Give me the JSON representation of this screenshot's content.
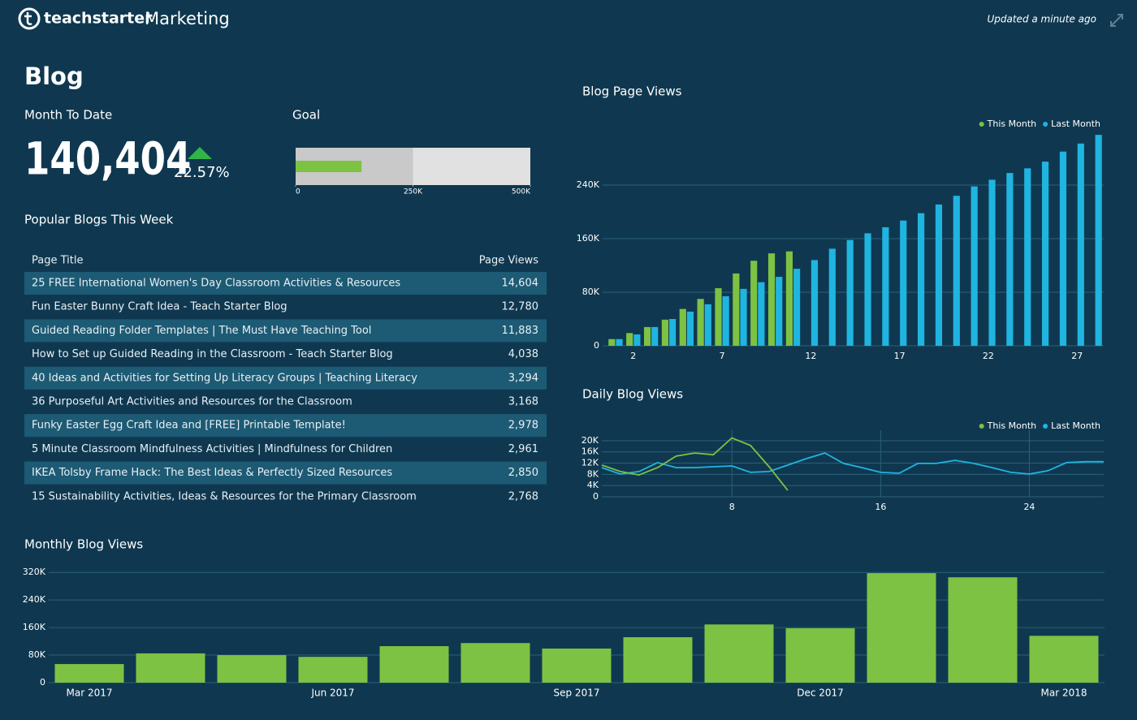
{
  "header": {
    "brand": "teachstarter",
    "section": "Marketing",
    "updated": "Updated a minute ago"
  },
  "blog": {
    "title": "Blog",
    "month_to_date": {
      "label": "Month To Date",
      "value": "140,404",
      "change": "22.57%"
    }
  },
  "popular_blogs": {
    "title": "Popular Blogs This Week",
    "columns": [
      "Page Title",
      "Page Views"
    ],
    "rows": [
      [
        "25 FREE International Women's Day Classroom Activities & Resources",
        "14,604"
      ],
      [
        "Fun Easter Bunny Craft Idea - Teach Starter Blog",
        "12,780"
      ],
      [
        "Guided Reading Folder Templates | The Must Have Teaching Tool",
        "11,883"
      ],
      [
        "How to Set up Guided Reading in the Classroom - Teach Starter Blog",
        "4,038"
      ],
      [
        "40 Ideas and Activities for Setting Up Literacy Groups | Teaching Literacy",
        "3,294"
      ],
      [
        "36 Purposeful Art Activities and Resources for the Classroom",
        "3,168"
      ],
      [
        "Funky Easter Egg Craft Idea and [FREE] Printable Template!",
        "2,978"
      ],
      [
        "5 Minute Classroom Mindfulness Activities | Mindfulness for Children",
        "2,961"
      ],
      [
        "IKEA Tolsby Frame Hack: The Best Ideas & Perfectly Sized Resources",
        "2,850"
      ],
      [
        "15 Sustainability Activities, Ideas & Resources for the Primary Classroom",
        "2,768"
      ]
    ]
  },
  "chart_data": [
    {
      "type": "bullet",
      "title": "Goal",
      "values": [
        140404
      ],
      "color": "#7dc242",
      "ranges": [
        250000,
        500000
      ],
      "range_colors": [
        "#c9c9c9",
        "#e1e1e1"
      ],
      "xlim": [
        0,
        500000
      ],
      "xticks": [
        0,
        {
          "value": 250000,
          "label": "250K"
        },
        {
          "value": 500000,
          "label": "500K"
        }
      ]
    },
    {
      "type": "bar",
      "title": "Blog Page Views",
      "legend": "upper right",
      "grid": true,
      "x": [
        1,
        2,
        3,
        4,
        5,
        6,
        7,
        8,
        9,
        10,
        11,
        12,
        13,
        14,
        15,
        16,
        17,
        18,
        19,
        20,
        21,
        22,
        23,
        24,
        25,
        26,
        27,
        28
      ],
      "xlim": [
        0.5,
        28.5
      ],
      "xticks": [
        2,
        7,
        12,
        17,
        22,
        27
      ],
      "ylim": [
        0,
        320000
      ],
      "yticks": [
        0,
        {
          "value": 80000,
          "label": "80K"
        },
        {
          "value": 160000,
          "label": "160K"
        },
        {
          "value": 240000,
          "label": "240K"
        }
      ],
      "series": [
        {
          "name": "This Month",
          "color": "#7dc242",
          "values": [
            10000,
            19000,
            28000,
            39000,
            55000,
            70000,
            86000,
            108000,
            127000,
            138000,
            141000,
            null,
            null,
            null,
            null,
            null,
            null,
            null,
            null,
            null,
            null,
            null,
            null,
            null,
            null,
            null,
            null,
            null
          ]
        },
        {
          "name": "Last Month",
          "color": "#1fb5e0",
          "values": [
            10000,
            17000,
            28000,
            40000,
            51000,
            62000,
            74000,
            85000,
            95000,
            103000,
            115000,
            128000,
            145000,
            158000,
            168000,
            177000,
            187000,
            198000,
            211000,
            224000,
            238000,
            248000,
            258000,
            265000,
            275000,
            290000,
            302000,
            315000
          ]
        }
      ]
    },
    {
      "type": "line",
      "title": "Daily Blog Views",
      "legend": "upper right",
      "grid": true,
      "xgrid": true,
      "x": [
        1,
        2,
        3,
        4,
        5,
        6,
        7,
        8,
        9,
        10,
        11,
        12,
        13,
        14,
        15,
        16,
        17,
        18,
        19,
        20,
        21,
        22,
        23,
        24,
        25,
        26,
        27,
        28
      ],
      "xlim": [
        1,
        28
      ],
      "xticks": [
        8,
        16,
        24
      ],
      "ylim": [
        0,
        22000
      ],
      "yticks": [
        0,
        {
          "value": 4000,
          "label": "4K"
        },
        {
          "value": 8000,
          "label": "8K"
        },
        {
          "value": 12000,
          "label": "12K"
        },
        {
          "value": 16000,
          "label": "16K"
        },
        {
          "value": 20000,
          "label": "20K"
        }
      ],
      "series": [
        {
          "name": "This Month",
          "color": "#7dc242",
          "values": [
            11300,
            9000,
            7800,
            10400,
            14500,
            15600,
            15000,
            21000,
            18300,
            10700,
            2300,
            null,
            null,
            null,
            null,
            null,
            null,
            null,
            null,
            null,
            null,
            null,
            null,
            null,
            null,
            null,
            null,
            null
          ]
        },
        {
          "name": "Last Month",
          "color": "#1fb5e0",
          "values": [
            10400,
            8100,
            9000,
            12200,
            10400,
            10400,
            10700,
            11000,
            8700,
            9000,
            11300,
            13600,
            15600,
            11900,
            10400,
            8700,
            8400,
            11900,
            11900,
            13000,
            11900,
            10400,
            8700,
            8100,
            9300,
            12200,
            12500,
            12500
          ]
        }
      ]
    },
    {
      "type": "bar",
      "title": "Monthly Blog Views",
      "grid": true,
      "color": "#7dc242",
      "categories": [
        "Mar 2017",
        null,
        null,
        "Jun 2017",
        null,
        null,
        "Sep 2017",
        null,
        null,
        "Dec 2017",
        null,
        null,
        "Mar 2018"
      ],
      "values": [
        54000,
        85000,
        80000,
        75000,
        106000,
        115000,
        99000,
        132000,
        169000,
        158000,
        318000,
        306000,
        136000
      ],
      "ylim": [
        0,
        330000
      ],
      "yticks": [
        0,
        {
          "value": 80000,
          "label": "80K"
        },
        {
          "value": 160000,
          "label": "160K"
        },
        {
          "value": 240000,
          "label": "240K"
        },
        {
          "value": 320000,
          "label": "320K"
        }
      ]
    }
  ]
}
